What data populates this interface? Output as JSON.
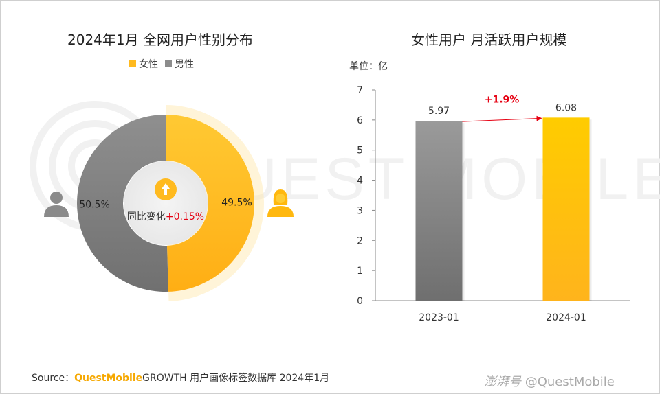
{
  "left_title": "2024年1月 全网用户性别分布",
  "right_title": "女性用户 月活跃用户规模",
  "unit_label": "单位：亿",
  "watermark_text": "QUEST MOBILE",
  "footer": {
    "source_label": "Source：",
    "brand": "QuestMobile",
    "rest": "GROWTH 用户画像标签数据库 2024年1月"
  },
  "credit": {
    "site": "澎湃号",
    "handle": "@QuestMobile"
  },
  "colors": {
    "female": "#FFBA1F",
    "female_light": "#FFD24D",
    "male": "#8C8C8C",
    "male_dark": "#6E6E6E",
    "change_red": "#E60012"
  },
  "chart_data": [
    {
      "type": "pie",
      "title": "2024年1月 全网用户性别分布",
      "legend_position": "top",
      "series": [
        {
          "name": "女性",
          "value": 49.5,
          "label": "49.5%"
        },
        {
          "name": "男性",
          "value": 50.5,
          "label": "50.5%"
        }
      ],
      "center_text": "同比变化",
      "center_change": "+0.15%",
      "icons": [
        "male-user-icon",
        "female-user-icon",
        "up-arrow-icon"
      ]
    },
    {
      "type": "bar",
      "title": "女性用户 月活跃用户规模",
      "categories": [
        "2023-01",
        "2024-01"
      ],
      "values": [
        5.97,
        6.08
      ],
      "value_labels": [
        "5.97",
        "6.08"
      ],
      "ylim": [
        0,
        7
      ],
      "yticks": [
        0,
        1,
        2,
        3,
        4,
        5,
        6,
        7
      ],
      "grid": false,
      "growth_label": "+1.9%"
    }
  ]
}
